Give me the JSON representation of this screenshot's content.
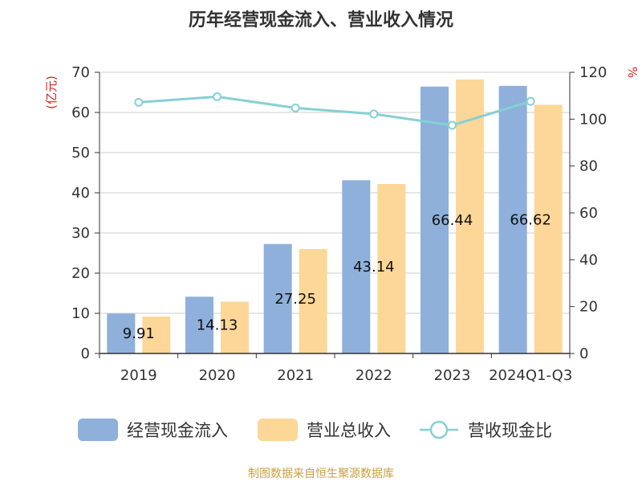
{
  "title": "历年经营现金流入、营业收入情况",
  "source": "制图数据来自恒生聚源数据库",
  "colors": {
    "cash_inflow": "#8eb0db",
    "revenue": "#fdd798",
    "ratio": "#86d0d5",
    "axis": "#333333",
    "grid": "#cccccc",
    "unit_left": "#e02020",
    "unit_right": "#e02020",
    "source": "#c8a040"
  },
  "chart_data": {
    "type": "bar",
    "categories": [
      "2019",
      "2020",
      "2021",
      "2022",
      "2023",
      "2024Q1-Q3"
    ],
    "y_left": {
      "unit": "(亿元)",
      "ylim": [
        0,
        70
      ],
      "ticks": [
        0,
        10,
        20,
        30,
        40,
        50,
        60,
        70
      ]
    },
    "y_right": {
      "unit": "%",
      "ylim": [
        0,
        120
      ],
      "ticks": [
        0,
        20,
        40,
        60,
        80,
        100,
        120
      ]
    },
    "grid": true,
    "legend_position": "bottom",
    "series": [
      {
        "name": "经营现金流入",
        "type": "bar",
        "axis": "left",
        "values": [
          9.91,
          14.13,
          27.25,
          43.14,
          66.44,
          66.62
        ],
        "labels": [
          "9.91",
          "14.13",
          "27.25",
          "43.14",
          "66.44",
          "66.62"
        ]
      },
      {
        "name": "营业总收入",
        "type": "bar",
        "axis": "left",
        "values": [
          9.2,
          12.9,
          26.0,
          42.2,
          68.2,
          61.9
        ]
      },
      {
        "name": "营收现金比",
        "type": "line",
        "axis": "right",
        "values": [
          107.2,
          109.6,
          104.8,
          102.2,
          97.4,
          107.6
        ]
      }
    ]
  }
}
